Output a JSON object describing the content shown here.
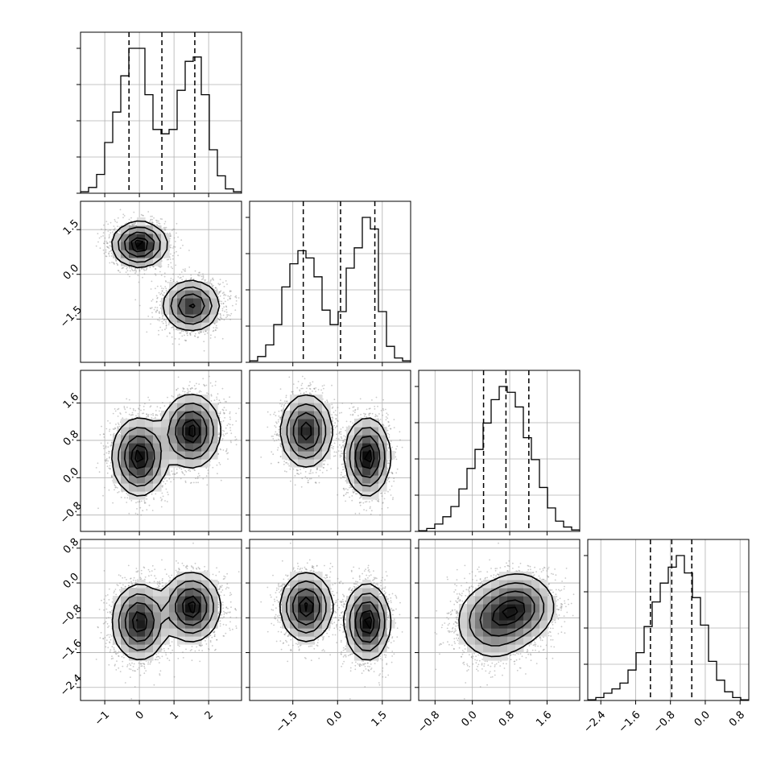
{
  "chart_data": {
    "type": "corner",
    "params": [
      {
        "range": [
          -1.7,
          2.95
        ],
        "ticks": [
          -1,
          0,
          1,
          2
        ],
        "tick_labels": [
          "−1",
          "0",
          "1",
          "2"
        ],
        "quantiles": [
          -0.3,
          0.65,
          1.6
        ],
        "hist": {
          "x0": -1.7,
          "x1": 2.95,
          "values": [
            0.01,
            0.04,
            0.13,
            0.35,
            0.56,
            0.81,
            1.0,
            1.0,
            0.68,
            0.44,
            0.41,
            0.44,
            0.71,
            0.91,
            0.94,
            0.68,
            0.3,
            0.12,
            0.03,
            0.01
          ]
        }
      },
      {
        "range": [
          -2.95,
          2.45
        ],
        "ticks": [
          -1.5,
          0.0,
          1.5
        ],
        "tick_labels": [
          "−1.5",
          "0.0",
          "1.5"
        ],
        "quantiles": [
          -1.15,
          0.1,
          1.25
        ],
        "hist": {
          "x0": -2.95,
          "x1": 2.45,
          "values": [
            0.01,
            0.04,
            0.12,
            0.26,
            0.52,
            0.68,
            0.77,
            0.72,
            0.59,
            0.36,
            0.26,
            0.35,
            0.65,
            0.79,
            1.0,
            0.92,
            0.35,
            0.11,
            0.03,
            0.01
          ]
        }
      },
      {
        "range": [
          -1.15,
          2.3
        ],
        "ticks": [
          -0.8,
          0.0,
          0.8,
          1.6
        ],
        "tick_labels": [
          "−0.8",
          "0.0",
          "0.8",
          "1.6"
        ],
        "quantiles": [
          0.24,
          0.72,
          1.21
        ],
        "hist": {
          "x0": -1.15,
          "x1": 2.3,
          "values": [
            0.005,
            0.02,
            0.05,
            0.1,
            0.17,
            0.29,
            0.43,
            0.56,
            0.74,
            0.9,
            0.99,
            0.95,
            0.85,
            0.64,
            0.49,
            0.3,
            0.16,
            0.07,
            0.03,
            0.01
          ]
        }
      },
      {
        "range": [
          -2.7,
          1.0
        ],
        "ticks": [
          -2.4,
          -1.6,
          -0.8,
          0.0,
          0.8
        ],
        "tick_labels": [
          "−2.4",
          "−1.6",
          "−0.8",
          "0.0",
          "0.8"
        ],
        "quantiles": [
          -1.26,
          -0.77,
          -0.31
        ],
        "hist": {
          "x0": -2.7,
          "x1": 1.0,
          "values": [
            0.005,
            0.02,
            0.05,
            0.08,
            0.12,
            0.21,
            0.33,
            0.51,
            0.68,
            0.81,
            0.92,
            1.0,
            0.88,
            0.71,
            0.52,
            0.27,
            0.14,
            0.06,
            0.02,
            0.005
          ]
        }
      }
    ],
    "modes": [
      {
        "mu": [
          0.0,
          1.0,
          0.45,
          -0.9
        ],
        "sd": [
          0.38,
          0.36,
          0.4,
          0.42
        ],
        "w": 0.5
      },
      {
        "mu": [
          1.5,
          -1.05,
          1.0,
          -0.55
        ],
        "sd": [
          0.4,
          0.42,
          0.38,
          0.38
        ],
        "w": 0.5
      }
    ],
    "grid": true
  }
}
